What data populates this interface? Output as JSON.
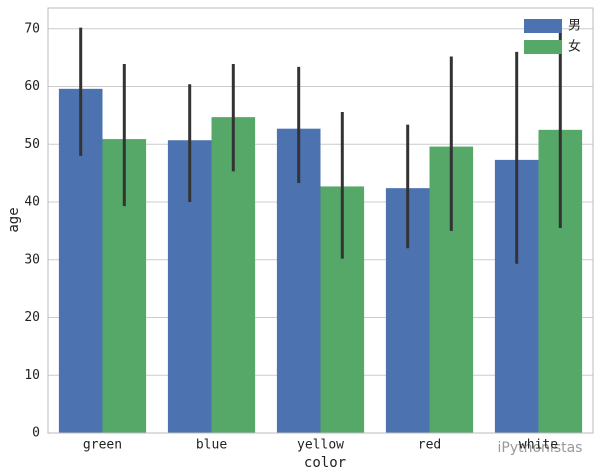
{
  "chart_data": {
    "type": "bar",
    "xlabel": "color",
    "ylabel": "age",
    "categories": [
      "green",
      "blue",
      "yellow",
      "red",
      "white"
    ],
    "series": [
      {
        "name": "男",
        "color": "#4c72b0",
        "values": [
          59.6,
          50.7,
          52.7,
          42.4,
          47.3
        ],
        "ci_low": [
          48,
          40,
          43.3,
          32,
          29.3
        ],
        "ci_high": [
          70.2,
          60.4,
          63.4,
          53.4,
          66
        ]
      },
      {
        "name": "女",
        "color": "#55a868",
        "values": [
          50.9,
          54.7,
          42.7,
          49.6,
          52.5
        ],
        "ci_low": [
          39.3,
          45.3,
          30.2,
          35,
          35.5
        ],
        "ci_high": [
          63.9,
          63.9,
          55.6,
          65.2,
          69.3
        ]
      }
    ],
    "ylim": [
      0,
      73.6
    ],
    "yticks": [
      0,
      10,
      20,
      30,
      40,
      50,
      60,
      70
    ],
    "grid": true,
    "legend": "upper right",
    "watermark": "iPythonistas"
  }
}
